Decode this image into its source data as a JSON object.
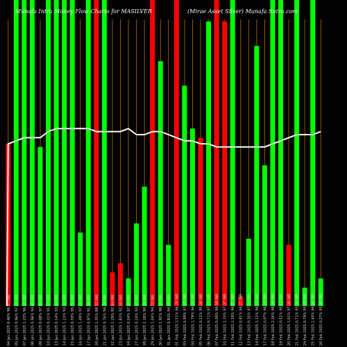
{
  "chart_data": {
    "type": "bar",
    "title_left": "Munafa Intra Money Flow Charts for MASILVER",
    "title_right": "(Mirae Asset Silver) Munafa Sutra.com",
    "ylim": [
      0,
      100
    ],
    "grid": "vertical",
    "colors": {
      "up": "#00ff00",
      "down": "#ff0000",
      "line": "#ffffff",
      "grid": "#b56f00",
      "background": "#000000"
    },
    "categories": [
      "04 Jan 2025 0.46% 96.07 INR",
      "05 Jan 2025 0.96% 97.25 INR",
      "07 Jan 2025 1.23% 96.10 INR",
      "08 Jan 2025 0.96% 94.85 INR",
      "09 Jan 2025 0.08% 97.94 INR",
      "10 Jan 2025 0.31% 91.57 INR",
      "13 Jan 2025 0.14% 93.84 INR",
      "14 Jan 2025 1.23% 93.12 INR",
      "15 Jan 2025 0.33% 95.74 INR",
      "16 Jan 2025 1.49% 97.11 INR",
      "17 Jan 2025 0.97% 91.89 INR",
      "20 Jan 2025 1.55% 88.52 INR",
      "21 Jan 2025 0.76% 94.76 INR",
      "22 Jan 2025 1.29% 92.04 INR",
      "23 Jan 2025 1.83% 92.50 INR",
      "24 Jan 2025 0.24% 97.15 INR",
      "27 Jan 2025 0.24% 93.51 INR",
      "28 Jan 2025 2.18% 90.29 INR",
      "29 Jan 2025 1.04% 94.70 INR",
      "30 Jan 2025 1.92% 98.55 INR",
      "31 Jan 2025 0.83% 94.19 INR",
      "01 Feb 2025 3.51% 96.70 INR",
      "03 Feb 2025 0.99% 97.43 INR",
      "04 Feb 2025 1.79% 96.20 INR",
      "05 Feb 2025 0.21% 95.06 INR",
      "06 Feb 2025 0.71% 97.21 INR",
      "07 Feb 2025 0.09% 96.58 INR",
      "10 Feb 2025 1.33% 97.37 INR",
      "11 Feb 2025 2.19% 96.87 INR",
      "12 Feb 2025 0.81% 94.27 INR",
      "13 Feb 2025 0.35% 97.04 INR",
      "14 Feb 2025 1.11% 96.52 INR",
      "17 Feb 2025 0.07% 96.03 INR",
      "18 Feb 2025 2.26% 98.90 INR",
      "19 Feb 2025 0.52% 95.12 INR",
      "20 Feb 2025 1.01% 97.06 INR",
      "21 Feb 2025 0.71% 95.44 INR",
      "24 Feb 2025 0.79% 95.09 INR",
      "25 Feb 2025 2.40% 96.66 INR",
      "26 Feb 2025 0.27% 95.96 INR"
    ],
    "bar_direction": [
      "down",
      "up",
      "up",
      "up",
      "up",
      "up",
      "up",
      "up",
      "up",
      "up",
      "up",
      "down",
      "up",
      "down",
      "down",
      "up",
      "up",
      "up",
      "down",
      "up",
      "up",
      "down",
      "up",
      "up",
      "down",
      "up",
      "down",
      "down",
      "up",
      "down",
      "up",
      "up",
      "up",
      "up",
      "up",
      "down",
      "up",
      "up",
      "up",
      "up"
    ],
    "money_flow": [
      53,
      100,
      100,
      100,
      52,
      100,
      100,
      100,
      100,
      24,
      100,
      100,
      100,
      11,
      14,
      9,
      27,
      39,
      100,
      80,
      20,
      100,
      72,
      58,
      55,
      93,
      100,
      93,
      100,
      3,
      22,
      85,
      46,
      100,
      100,
      20,
      100,
      6,
      100,
      9
    ],
    "money_flow_line": [
      53,
      54,
      55,
      55,
      55,
      57,
      58,
      58,
      58,
      58,
      58,
      57,
      57,
      57,
      57,
      58,
      56,
      56,
      57,
      57,
      56,
      55,
      54,
      54,
      53,
      53,
      52,
      52,
      52,
      52,
      52,
      52,
      52,
      53,
      54,
      55,
      56,
      56,
      56,
      57
    ]
  }
}
